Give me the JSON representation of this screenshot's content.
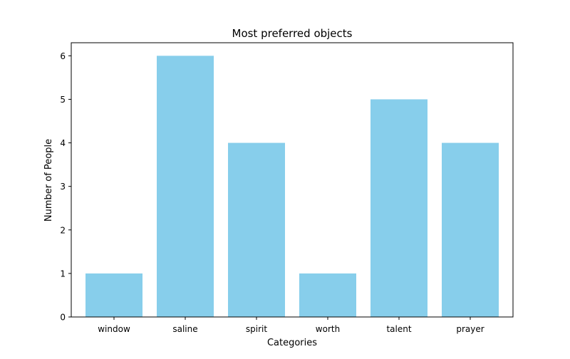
{
  "chart_data": {
    "type": "bar",
    "title": "Most preferred objects",
    "xlabel": "Categories",
    "ylabel": "Number of People",
    "categories": [
      "window",
      "saline",
      "spirit",
      "worth",
      "talent",
      "prayer"
    ],
    "values": [
      1,
      6,
      4,
      1,
      5,
      4
    ],
    "ylim": [
      0,
      6.3
    ],
    "yticks": [
      0,
      1,
      2,
      3,
      4,
      5,
      6
    ],
    "bar_color": "#87ceeb",
    "grid": false,
    "legend": "none"
  }
}
